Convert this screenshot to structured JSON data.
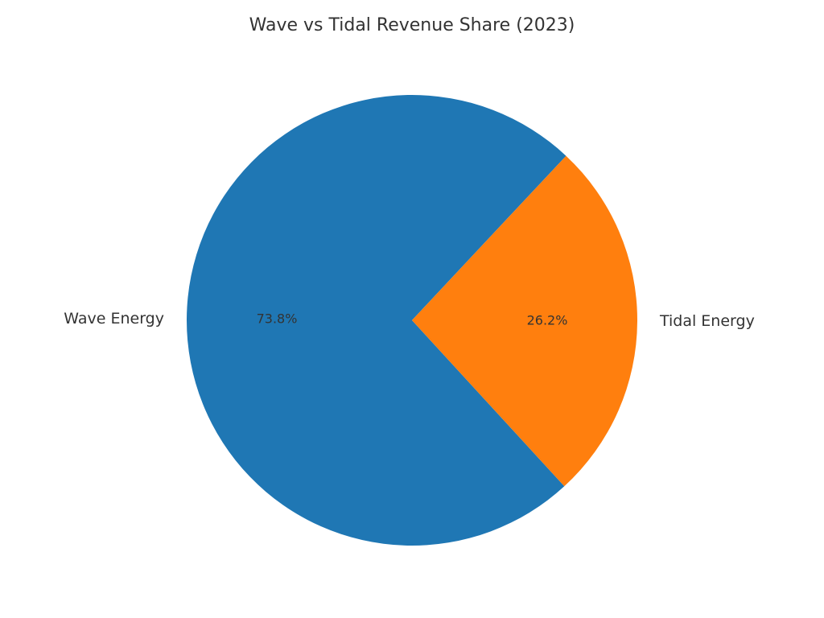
{
  "chart_data": {
    "type": "pie",
    "title": "Wave vs Tidal Revenue Share (2023)",
    "slices": [
      {
        "label": "Wave Energy",
        "value": 73.8,
        "percent_label": "73.8%",
        "color": "#1f77b4"
      },
      {
        "label": "Tidal Energy",
        "value": 26.2,
        "percent_label": "26.2%",
        "color": "#ff7f0e"
      }
    ]
  }
}
